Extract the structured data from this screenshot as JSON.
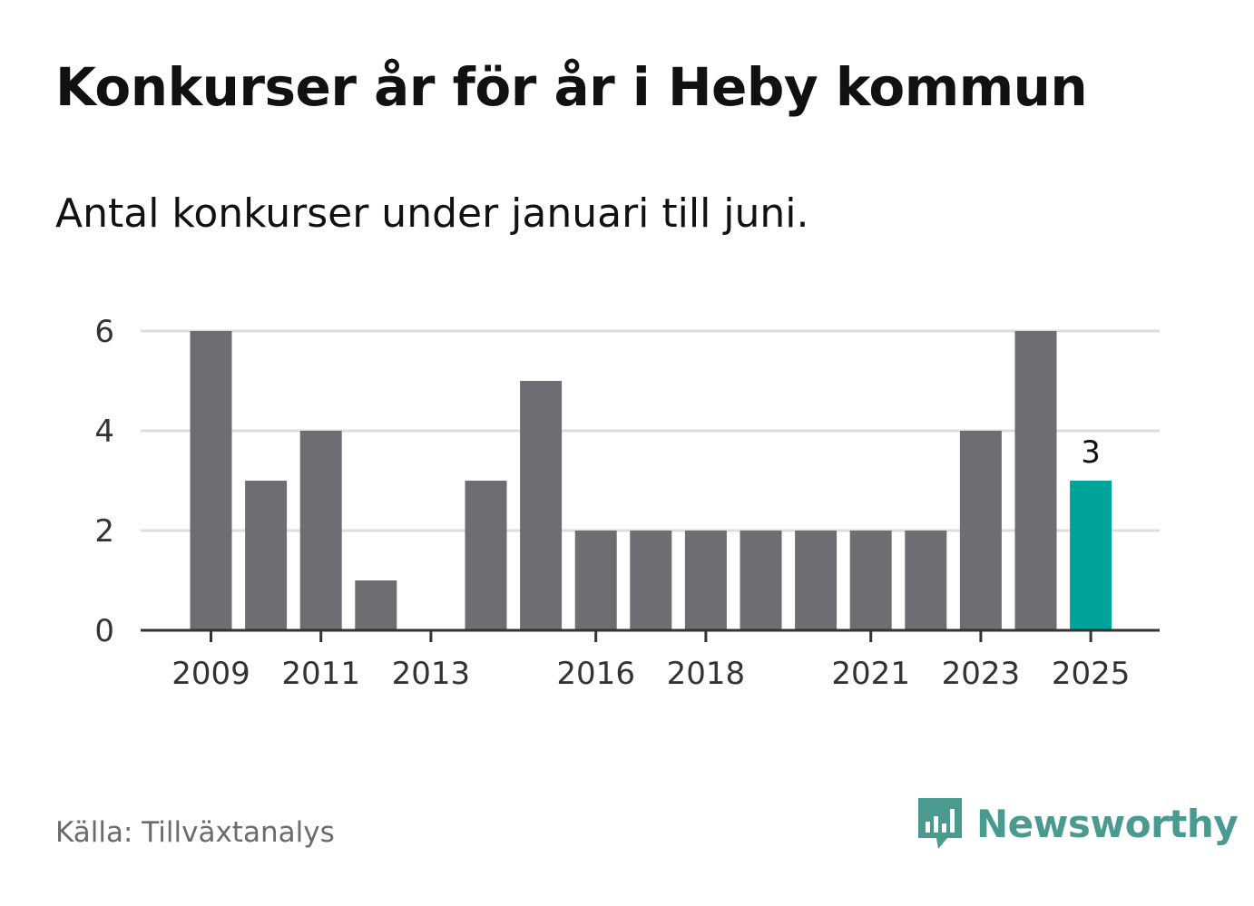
{
  "title": "Konkurser år för år i Heby kommun",
  "subtitle": "Antal konkurser under januari till juni.",
  "source": "Källa: Tillväxtanalys",
  "brand": {
    "name": "Newsworthy",
    "icon": "newsworthy-logo-icon",
    "color": "#4a9a8f"
  },
  "colors": {
    "bar": "#6e6d72",
    "highlight": "#00a39a",
    "grid": "#dddddd",
    "axis": "#333333",
    "tick_text": "#333333"
  },
  "chart_data": {
    "type": "bar",
    "title": "Konkurser år för år i Heby kommun",
    "subtitle": "Antal konkurser under januari till juni.",
    "xlabel": "",
    "ylabel": "",
    "categories": [
      "2009",
      "2010",
      "2011",
      "2012",
      "2013",
      "2014",
      "2015",
      "2016",
      "2017",
      "2018",
      "2019",
      "2020",
      "2021",
      "2022",
      "2023",
      "2024",
      "2025"
    ],
    "values": [
      6,
      3,
      4,
      1,
      0,
      3,
      5,
      2,
      2,
      2,
      2,
      2,
      2,
      2,
      4,
      6,
      3
    ],
    "x_tick_labels": [
      "2009",
      "2011",
      "2013",
      "2016",
      "2018",
      "2021",
      "2023",
      "2025"
    ],
    "y_ticks": [
      0,
      2,
      4,
      6
    ],
    "ylim": [
      0,
      6
    ],
    "grid": true,
    "highlight": {
      "category": "2025",
      "label": "3"
    }
  }
}
